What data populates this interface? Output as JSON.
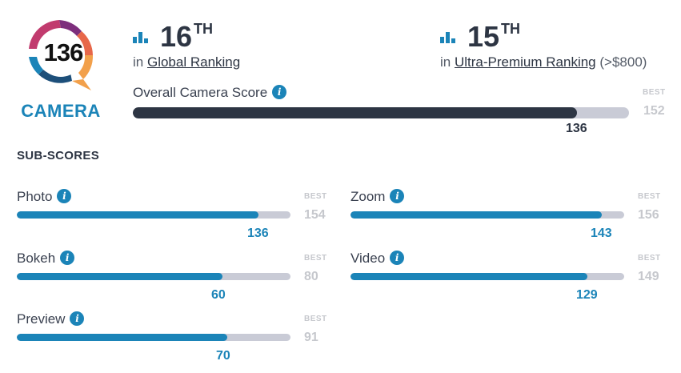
{
  "badge": {
    "score": "136",
    "label": "CAMERA"
  },
  "rankings": [
    {
      "rank": "16",
      "suffix": "TH",
      "prefix": "in",
      "name": "Global Ranking",
      "extra": ""
    },
    {
      "rank": "15",
      "suffix": "TH",
      "prefix": "in",
      "name": "Ultra-Premium Ranking",
      "extra": "(>$800)"
    }
  ],
  "overall": {
    "label": "Overall Camera Score",
    "info": "i",
    "best_label": "BEST",
    "best": 152,
    "score": 136
  },
  "subscores_title": "SUB-SCORES",
  "subscores": [
    {
      "label": "Photo",
      "info": "i",
      "best_label": "BEST",
      "best": 154,
      "score": 136
    },
    {
      "label": "Zoom",
      "info": "i",
      "best_label": "BEST",
      "best": 156,
      "score": 143
    },
    {
      "label": "Bokeh",
      "info": "i",
      "best_label": "BEST",
      "best": 80,
      "score": 60
    },
    {
      "label": "Video",
      "info": "i",
      "best_label": "BEST",
      "best": 149,
      "score": 129
    },
    {
      "label": "Preview",
      "info": "i",
      "best_label": "BEST",
      "best": 91,
      "score": 70
    }
  ],
  "colors": {
    "accent": "#1b84b8",
    "dark_bar": "#2d3543",
    "track": "#c9cbd6",
    "muted": "#c6c8cd"
  }
}
